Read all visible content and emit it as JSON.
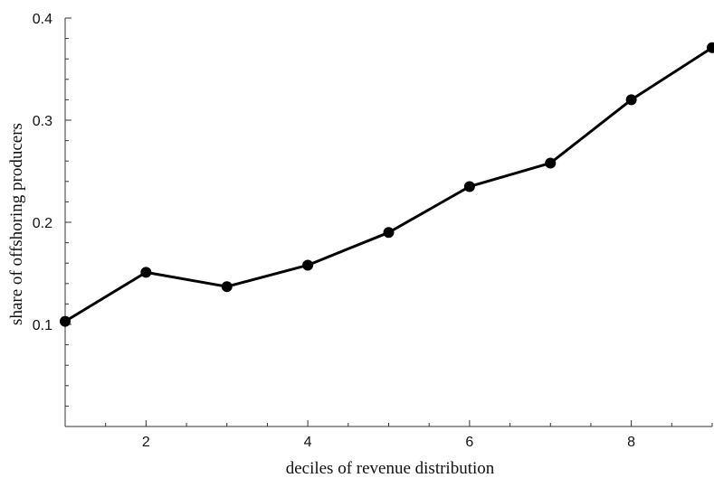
{
  "chart_data": {
    "type": "line",
    "title": "",
    "xlabel": "deciles of revenue distribution",
    "ylabel": "share of offshoring producers",
    "xlim": [
      1,
      9
    ],
    "ylim": [
      0.0,
      0.4
    ],
    "x_ticks": [
      "2",
      "4",
      "6",
      "8"
    ],
    "x_tick_values": [
      2,
      4,
      6,
      8
    ],
    "y_ticks": [
      "0.1",
      "0.2",
      "0.3",
      "0.4"
    ],
    "y_tick_values": [
      0.1,
      0.2,
      0.3,
      0.4
    ],
    "grid": false,
    "legend": "none",
    "series": [
      {
        "x": [
          1,
          2,
          3,
          4,
          5,
          6,
          7,
          8,
          9
        ],
        "values": [
          0.103,
          0.151,
          0.137,
          0.158,
          0.19,
          0.235,
          0.258,
          0.32,
          0.371
        ]
      }
    ],
    "colors": {
      "line": "#000000",
      "marker": "#000000",
      "axis": "#333333"
    }
  }
}
